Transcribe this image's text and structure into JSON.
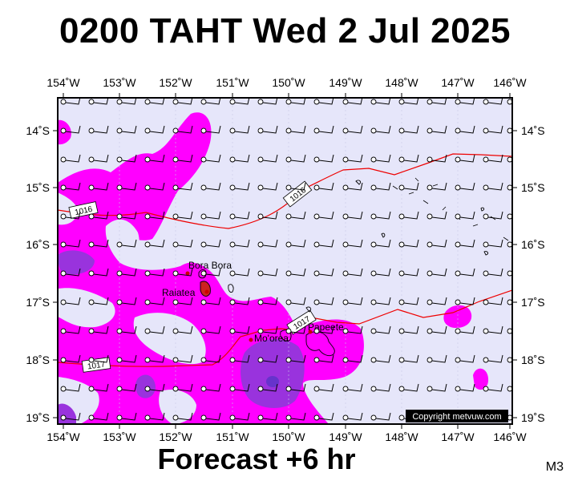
{
  "title": "0200 TAHT Wed 2 Jul 2025",
  "footer": "Forecast +6 hr",
  "tag": "M3",
  "copyright": "Copyright metvuw.com",
  "lon_labels": [
    "154˚W",
    "153˚W",
    "152˚W",
    "151˚W",
    "150˚W",
    "149˚W",
    "148˚W",
    "147˚W",
    "146˚W"
  ],
  "lat_labels": [
    "14˚S",
    "15˚S",
    "16˚S",
    "17˚S",
    "18˚S",
    "19˚S"
  ],
  "isobars": [
    {
      "label": "1016"
    },
    {
      "label": "1016"
    },
    {
      "label": "1017"
    },
    {
      "label": "1017"
    }
  ],
  "places": [
    "Bora Bora",
    "Raiatea",
    "Mo'orea",
    "Papeete"
  ],
  "colors": {
    "sea": "#e6e6fa",
    "rain_light": "#ff00ff",
    "rain_heavy": "#9933dd",
    "isobar": "#ee0000",
    "wind": "#000000"
  }
}
